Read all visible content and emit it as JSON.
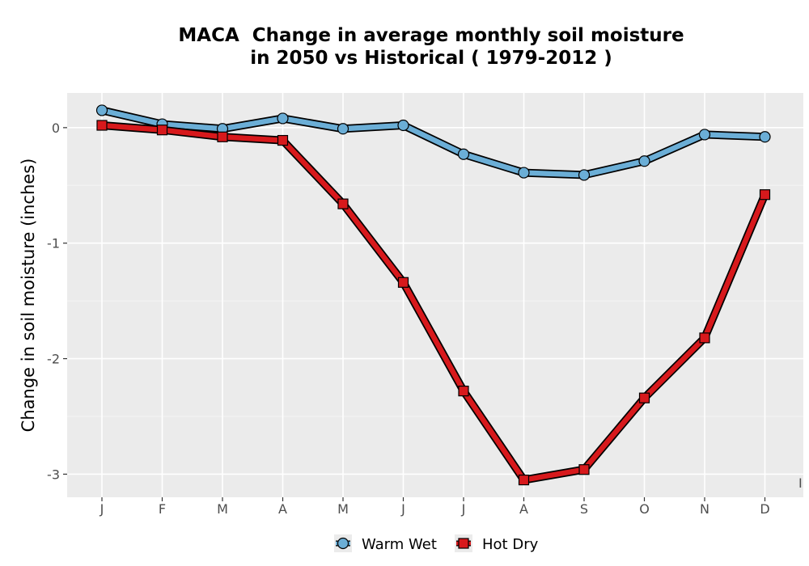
{
  "chart_data": {
    "type": "line",
    "title_lines": [
      "MACA  Change in average monthly soil moisture",
      "in 2050 vs Historical ( 1979-2012 )"
    ],
    "xlabel": "",
    "ylabel": "Change in soil moisture (inches)",
    "categories": [
      "J",
      "F",
      "M",
      "A",
      "M",
      "J",
      "J",
      "A",
      "S",
      "O",
      "N",
      "D"
    ],
    "y_ticks": [
      0,
      -1,
      -2,
      -3
    ],
    "y_tick_labels": [
      "0",
      "-1",
      "-2",
      "-3"
    ],
    "ylim": [
      -3.2,
      0.3
    ],
    "grid": true,
    "legend_position": "bottom",
    "series": [
      {
        "name": "Warm Wet",
        "color": "#6BAED6",
        "marker": "circle",
        "values": [
          0.15,
          0.03,
          -0.01,
          0.08,
          -0.01,
          0.02,
          -0.23,
          -0.39,
          -0.41,
          -0.29,
          -0.06,
          -0.08
        ]
      },
      {
        "name": "Hot Dry",
        "color": "#D7191C",
        "marker": "square",
        "values": [
          0.02,
          -0.02,
          -0.08,
          -0.11,
          -0.66,
          -1.34,
          -2.28,
          -3.05,
          -2.96,
          -2.34,
          -1.82,
          -0.58
        ]
      }
    ],
    "annotation": "I"
  }
}
